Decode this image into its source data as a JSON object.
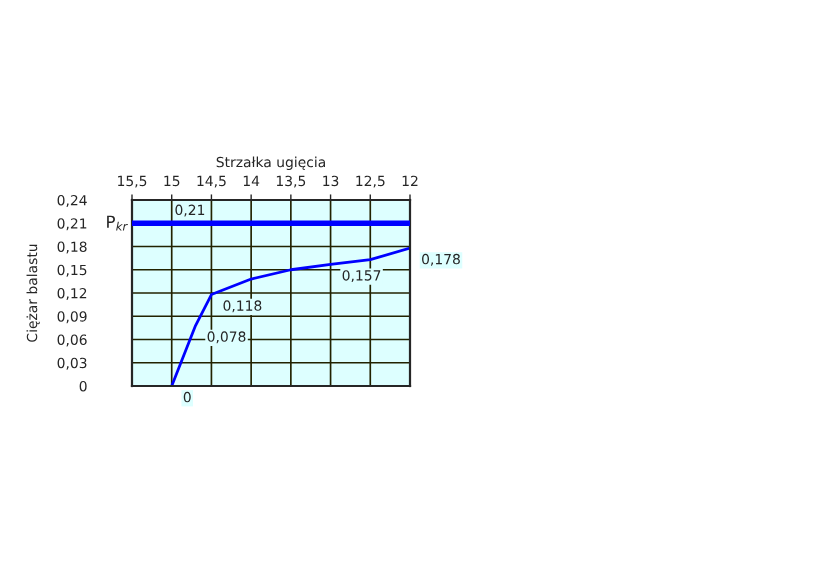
{
  "chart_data": {
    "type": "line",
    "xlabel": "Strzałka ugięcia",
    "ylabel": "Ciężar balastu",
    "x": [
      15,
      14.7,
      14.5,
      14,
      13.5,
      13,
      12.5,
      12
    ],
    "series": [
      {
        "color": "#0000ff",
        "values": [
          0,
          0.078,
          0.118,
          0.138,
          0.15,
          0.157,
          0.163,
          0.178
        ],
        "value_labels": [
          "0",
          "0,078",
          "0,118",
          null,
          null,
          "0,157",
          null,
          "0,178"
        ]
      }
    ],
    "xlim": [
      15.5,
      12
    ],
    "xticks": [
      {
        "value": 15.5,
        "label": "15,5"
      },
      15,
      {
        "value": 14.5,
        "label": "14,5"
      },
      14,
      {
        "value": 13.5,
        "label": "13,5"
      },
      13,
      {
        "value": 12.5,
        "label": "12,5"
      },
      12
    ],
    "ylim": [
      0,
      0.24
    ],
    "yticks": [
      0,
      {
        "value": 0.03,
        "label": "0,03"
      },
      {
        "value": 0.06,
        "label": "0,06"
      },
      {
        "value": 0.09,
        "label": "0,09"
      },
      {
        "value": 0.12,
        "label": "0,12"
      },
      {
        "value": 0.15,
        "label": "0,15"
      },
      {
        "value": 0.18,
        "label": "0,18"
      },
      {
        "value": 0.21,
        "label": "0,21"
      },
      {
        "value": 0.24,
        "label": "0,24"
      }
    ],
    "ref_lines": [
      {
        "axis": "y",
        "value": 0.21,
        "label": "P$_{kr}$",
        "color": "#0000ff"
      }
    ],
    "annotations": [
      {
        "text": "0,21",
        "x": 15,
        "y": 0.21
      }
    ],
    "grid": true,
    "legend": false
  }
}
